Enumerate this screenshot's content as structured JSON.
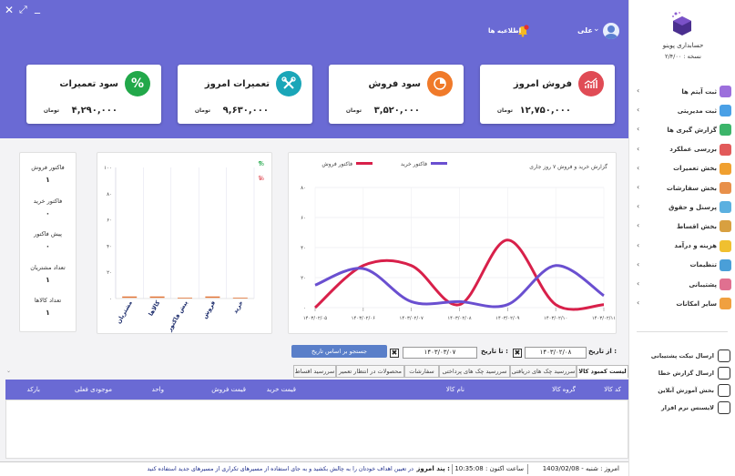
{
  "header": {
    "user_name": "علی",
    "notifications_label": "اطلاعیه ها",
    "notification_count": "!"
  },
  "cards": [
    {
      "title": "فروش امروز",
      "value": "۱۲,۷۵۰,۰۰۰",
      "currency": "تومان",
      "icon": "line-chart-icon",
      "color": "#e04b55"
    },
    {
      "title": "سود فروش",
      "value": "۳,۵۲۰,۰۰۰",
      "currency": "تومان",
      "icon": "pie-chart-icon",
      "color": "#f07a2a"
    },
    {
      "title": "تعمیرات امروز",
      "value": "۹,۶۳۰,۰۰۰",
      "currency": "تومان",
      "icon": "tools-icon",
      "color": "#1aa6b8"
    },
    {
      "title": "سود تعمیرات",
      "value": "۴,۲۹۰,۰۰۰",
      "currency": "تومان",
      "icon": "percent-icon",
      "color": "#22a84a"
    }
  ],
  "sidebar": {
    "app_name": "حسابداری پوینو",
    "version": "نسخه : ۲/۴/۰۰",
    "menu": [
      {
        "label": "ثبت آیتم ها",
        "color": "#9c6fdc"
      },
      {
        "label": "ثبت مدیریتی",
        "color": "#4aa0e6"
      },
      {
        "label": "گزارش گیری ها",
        "color": "#3cb56a"
      },
      {
        "label": "بررسی عملکرد",
        "color": "#e25a5a"
      },
      {
        "label": "بخش تعمیرات",
        "color": "#f0a030"
      },
      {
        "label": "بخش سفارشات",
        "color": "#e8904a"
      },
      {
        "label": "پرسنل و حقوق",
        "color": "#5bb0e0"
      },
      {
        "label": "بخش اقساط",
        "color": "#d8a040"
      },
      {
        "label": "هزینه و درآمد",
        "color": "#f0c030"
      },
      {
        "label": "تنظیمات",
        "color": "#4a9fd8"
      },
      {
        "label": "پشتیبانی",
        "color": "#e07090"
      },
      {
        "label": "سایر امکانات",
        "color": "#f0a040"
      }
    ],
    "links": [
      {
        "label": "ارسال تیکت پشتیبانی",
        "icon": "support-icon"
      },
      {
        "label": "ارسال گزارش خطا",
        "icon": "report-icon"
      },
      {
        "label": "بخش آموزش آنلاین",
        "icon": "training-icon"
      },
      {
        "label": "لایسنس نرم افزار",
        "icon": "license-icon"
      }
    ]
  },
  "stats": [
    {
      "label": "فاکتور فروش",
      "value": "۱"
    },
    {
      "label": "فاکتور خرید",
      "value": "۰"
    },
    {
      "label": "پیش فاکتور",
      "value": "۰"
    },
    {
      "label": "تعداد مشتریان",
      "value": "۱"
    },
    {
      "label": "تعداد کالاها",
      "value": "۱"
    }
  ],
  "chart_data": [
    {
      "type": "bar",
      "categories": [
        "خرید",
        "فروش",
        "پیش فاکتور",
        "کالاها",
        "مشتریان"
      ],
      "values": [
        0,
        1,
        0,
        1,
        1
      ],
      "ylim": [
        0,
        100
      ],
      "yticks": [
        "۰",
        "۲۰",
        "۴۰",
        "۶۰",
        "۸۰",
        "۱۰۰"
      ],
      "up_label": "%",
      "down_label": "%"
    },
    {
      "type": "line",
      "title": "گزارش خرید و فروش ۷ روز جاری",
      "x": [
        "۱۴۰۳/۰۲/۰۵",
        "۱۴۰۳/۰۲/۰۶",
        "۱۴۰۳/۰۲/۰۷",
        "۱۴۰۳/۰۲/۰۸",
        "۱۴۰۳/۰۲/۰۹",
        "۱۴۰۳/۰۲/۱۰",
        "۱۴۰۳/۰۲/۱۱"
      ],
      "ylim": [
        0,
        80
      ],
      "yticks": [
        "۰",
        "۲۰",
        "۴۰",
        "۶۰",
        "۸۰"
      ],
      "series": [
        {
          "name": "فاکتور فروش",
          "color": "#d8204a",
          "values": [
            0,
            28,
            28,
            2,
            45,
            2,
            2
          ]
        },
        {
          "name": "فاکتور خرید",
          "color": "#6a4fd0",
          "values": [
            15,
            26,
            4,
            4,
            2,
            28,
            8
          ]
        }
      ]
    }
  ],
  "filters": {
    "from_label": "از تاریخ :",
    "from_value": "۱۴۰۳/۰۲/۰۸",
    "to_label": "تا تاریخ :",
    "to_value": "۱۴۰۳/۰۳/۰۷",
    "clear_glyph": "✖",
    "search_label": "جستجو بر اساس تاریخ"
  },
  "tabs": [
    "لیست کمبود کالا",
    "سررسید چک های دریافتی",
    "سررسید چک های پرداختی",
    "سفارشات",
    "محصولات در انتظار تعمیر",
    "سررسید اقساط"
  ],
  "table": {
    "columns": [
      "کد کالا",
      "گروه کالا",
      "نام کالا",
      "قیمت خرید",
      "قیمت فروش",
      "واحد",
      "موجودی فعلی",
      "بارکد"
    ]
  },
  "status": {
    "today": "امروز : شنبه - 1403/02/08",
    "time": "ساعت اکنون : 10:35:08",
    "tip_label": "پند امروز :",
    "tip": "در تعیین اهداف خودتان را به چالش بکشید و به جای استفاده از مسیرهای تکراری از مسیرهای جدید استفاده کنید"
  }
}
